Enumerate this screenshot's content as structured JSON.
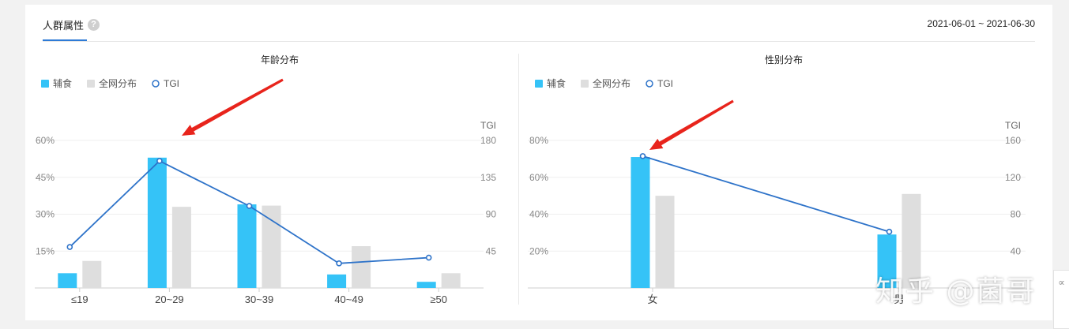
{
  "header": {
    "tab_label": "人群属性",
    "help_glyph": "?",
    "date_range": "2021-06-01 ~ 2021-06-30"
  },
  "colors": {
    "primary": "#35c3f7",
    "total": "#dedede",
    "tgi": "#2e73c9",
    "arrow": "#e8241c",
    "accent": "#2e7bd6"
  },
  "chart_data": [
    {
      "type": "bar",
      "title": "年龄分布",
      "legend": [
        "辅食",
        "全网分布",
        "TGI"
      ],
      "legend_position": "top-left",
      "categories": [
        "≤19",
        "20~29",
        "30~39",
        "40~49",
        "≥50"
      ],
      "series": [
        {
          "name": "辅食",
          "type": "bar",
          "values": [
            6,
            53,
            34,
            5.5,
            2.5
          ]
        },
        {
          "name": "全网分布",
          "type": "bar",
          "values": [
            11,
            33,
            33.5,
            17,
            6
          ]
        },
        {
          "name": "TGI",
          "type": "line",
          "axis": "right",
          "values": [
            50,
            155,
            100,
            30,
            37
          ]
        }
      ],
      "y_left": {
        "min": 0,
        "max": 60,
        "ticks": [
          "",
          "15%",
          "30%",
          "45%",
          "60%"
        ]
      },
      "y_right": {
        "label": "TGI",
        "min": 0,
        "max": 180,
        "ticks": [
          "",
          "45",
          "90",
          "135",
          "180"
        ]
      },
      "grid": true,
      "annotation": {
        "type": "arrow",
        "target_category": "20~29"
      }
    },
    {
      "type": "bar",
      "title": "性别分布",
      "legend": [
        "辅食",
        "全网分布",
        "TGI"
      ],
      "legend_position": "top-left",
      "categories": [
        "女",
        "男"
      ],
      "series": [
        {
          "name": "辅食",
          "type": "bar",
          "values": [
            71,
            29
          ]
        },
        {
          "name": "全网分布",
          "type": "bar",
          "values": [
            50,
            51
          ]
        },
        {
          "name": "TGI",
          "type": "line",
          "axis": "right",
          "values": [
            143,
            61
          ]
        }
      ],
      "y_left": {
        "min": 0,
        "max": 80,
        "ticks": [
          "",
          "20%",
          "40%",
          "60%",
          "80%"
        ]
      },
      "y_right": {
        "label": "TGI",
        "min": 0,
        "max": 160,
        "ticks": [
          "",
          "40",
          "80",
          "120",
          "160"
        ]
      },
      "grid": true,
      "annotation": {
        "type": "arrow",
        "target_category": "女"
      }
    }
  ],
  "watermark": "知乎 @菌哥",
  "side_tab": {
    "glyph": "∝"
  }
}
